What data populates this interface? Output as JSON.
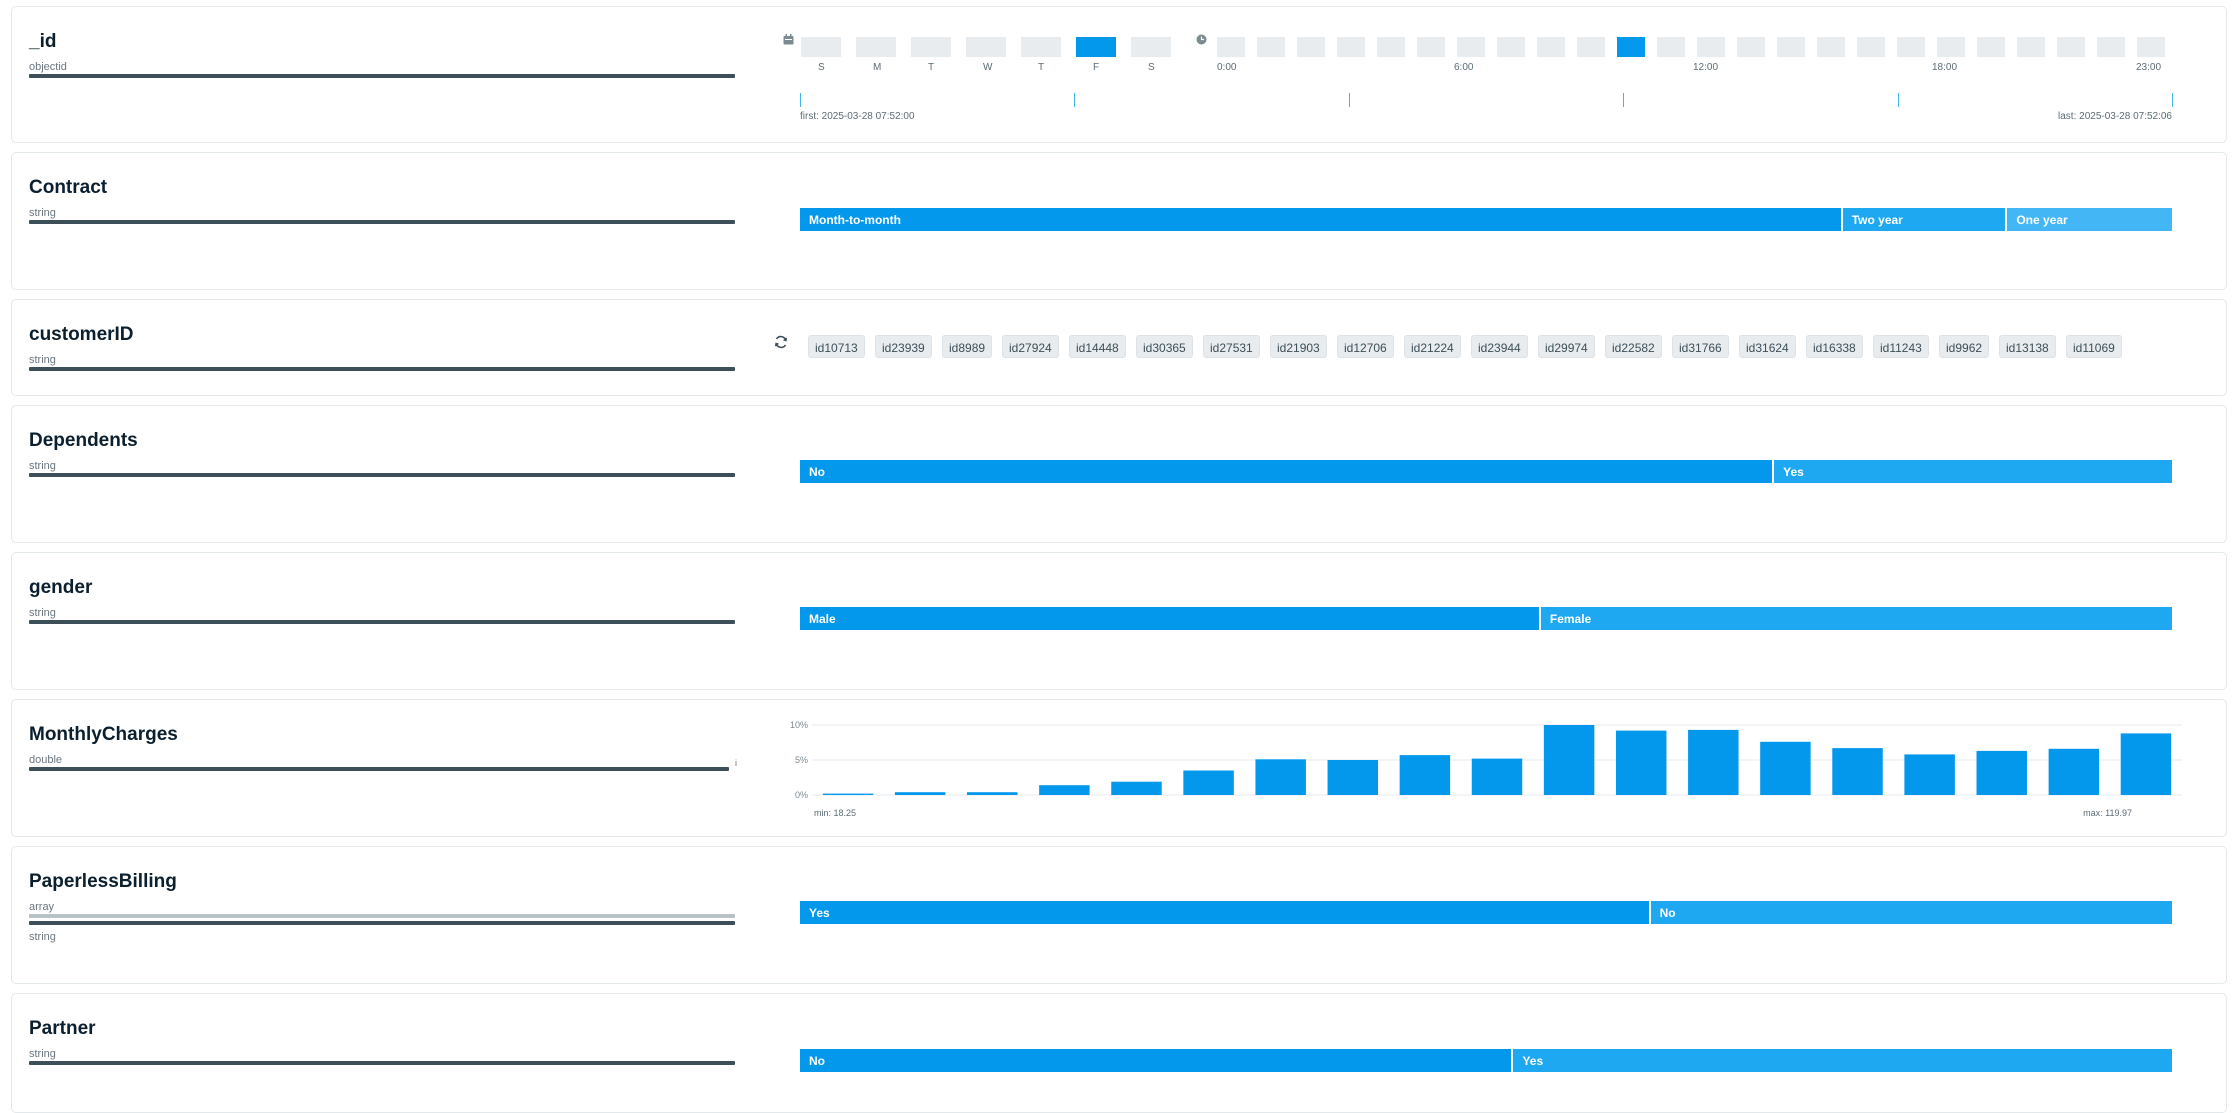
{
  "colors": {
    "primary": "#0498ec",
    "secondary": "#1fa8f2",
    "tertiary": "#43b7f5",
    "bar_dark": "#3d4f58"
  },
  "fields": {
    "id": {
      "name": "_id",
      "type": "objectid",
      "days": [
        "S",
        "M",
        "T",
        "W",
        "T",
        "F",
        "S"
      ],
      "active_day_index": 5,
      "hour_labels": [
        "0:00",
        "6:00",
        "12:00",
        "18:00",
        "23:00"
      ],
      "active_hour_index": 10,
      "first": "first: 2025-03-28 07:52:00",
      "last": "last: 2025-03-28 07:52:06",
      "calendar_icon": "calendar-icon",
      "clock_icon": "clock-icon"
    },
    "contract": {
      "name": "Contract",
      "type": "string",
      "segments": [
        {
          "label": "Month-to-month",
          "share": 0.76
        },
        {
          "label": "Two year",
          "share": 0.12
        },
        {
          "label": "One year",
          "share": 0.12
        }
      ]
    },
    "customerID": {
      "name": "customerID",
      "type": "string",
      "refresh_icon": "refresh-icon",
      "values": [
        "id10713",
        "id23939",
        "id8989",
        "id27924",
        "id14448",
        "id30365",
        "id27531",
        "id21903",
        "id12706",
        "id21224",
        "id23944",
        "id29974",
        "id22582",
        "id31766",
        "id31624",
        "id16338",
        "id11243",
        "id9962",
        "id13138",
        "id11069"
      ]
    },
    "dependents": {
      "name": "Dependents",
      "type": "string",
      "segments": [
        {
          "label": "No",
          "share": 0.71
        },
        {
          "label": "Yes",
          "share": 0.29
        }
      ]
    },
    "gender": {
      "name": "gender",
      "type": "string",
      "segments": [
        {
          "label": "Male",
          "share": 0.54
        },
        {
          "label": "Female",
          "share": 0.46
        }
      ]
    },
    "monthly": {
      "name": "MonthlyCharges",
      "type": "double",
      "bar_suffix": "i",
      "min": "min: 18.25",
      "max": "max: 119.97",
      "yticks": [
        "10%",
        "5%",
        "0%"
      ]
    },
    "paperless": {
      "name": "PaperlessBilling",
      "type_primary": "array",
      "type_secondary": "string",
      "segments": [
        {
          "label": "Yes",
          "share": 0.62
        },
        {
          "label": "No",
          "share": 0.38
        }
      ]
    },
    "partner": {
      "name": "Partner",
      "type": "string",
      "segments": [
        {
          "label": "No",
          "share": 0.52
        },
        {
          "label": "Yes",
          "share": 0.48
        }
      ]
    }
  },
  "chart_data": {
    "type": "bar",
    "title": "",
    "xlabel": "",
    "ylabel": "",
    "ylim": [
      0,
      10
    ],
    "grid": true,
    "values": [
      0.2,
      0.4,
      0.4,
      1.4,
      1.9,
      3.5,
      5.1,
      5.0,
      5.7,
      5.2,
      10.0,
      9.2,
      9.3,
      7.6,
      6.7,
      5.8,
      6.3,
      6.6,
      8.8
    ]
  }
}
